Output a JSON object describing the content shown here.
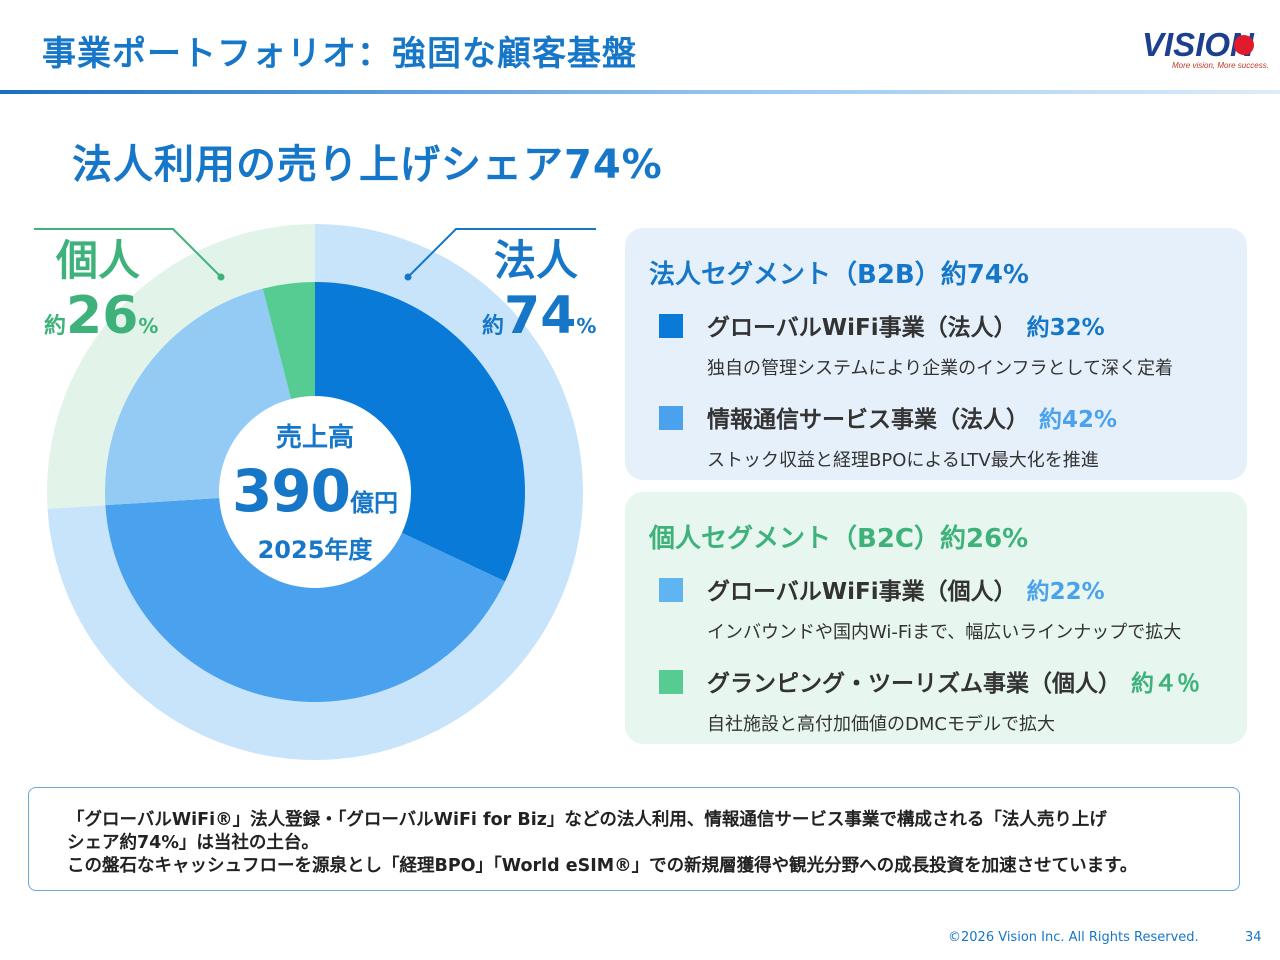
{
  "header": {
    "title": "事業ポートフォリオ：強固な顧客基盤",
    "logo_text": "VISION",
    "logo_tagline": "More vision, More success."
  },
  "headline": "法人利用の売り上げシェア74%",
  "chart_data": {
    "type": "donut",
    "title": "法人利用の売り上げシェア74%",
    "outer_ring": {
      "categories": [
        "法人",
        "個人"
      ],
      "values": [
        74,
        26
      ],
      "colors": [
        "#c8e4fa",
        "#e2f4ea"
      ]
    },
    "inner_ring": {
      "categories": [
        "グローバルWiFi事業（法人）",
        "情報通信サービス事業（法人）",
        "グローバルWiFi事業（個人）",
        "グランピング・ツーリズム事業（個人）"
      ],
      "values": [
        32,
        42,
        22,
        4
      ],
      "colors": [
        "#0a7ad9",
        "#4aa2ee",
        "#93cbf4",
        "#56cc93"
      ]
    },
    "labels": {
      "corp": {
        "name": "法人",
        "approx": "約",
        "value": "74",
        "unit": "%"
      },
      "indiv": {
        "name": "個人",
        "approx": "約",
        "value": "26",
        "unit": "%"
      }
    },
    "center": {
      "label": "売上高",
      "value": "390",
      "unit": "億円",
      "year": "2025年度"
    }
  },
  "segments": [
    {
      "title": "法人セグメント（B2B）約74%",
      "items": [
        {
          "name": "グローバルWiFi事業（法人）",
          "pct": "約32%",
          "desc": "独自の管理システムにより企業のインフラとして深く定着",
          "color": "#0a7ad9",
          "pct_color": "#1677c8"
        },
        {
          "name": "情報通信サービス事業（法人）",
          "pct": "約42%",
          "desc": "ストック収益と経理BPOによるLTV最大化を推進",
          "color": "#4aa2ee",
          "pct_color": "#4aa2ee"
        }
      ]
    },
    {
      "title": "個人セグメント（B2C）約26%",
      "items": [
        {
          "name": "グローバルWiFi事業（個人）",
          "pct": "約22%",
          "desc": "インバウンドや国内Wi-Fiまで、幅広いラインナップで拡大",
          "color": "#61b4f2",
          "pct_color": "#4aa2ee"
        },
        {
          "name": "グランピング・ツーリズム事業（個人）",
          "pct": "約４％",
          "desc": "自社施設と高付加価値のDMCモデルで拡大",
          "color": "#56cc93",
          "pct_color": "#3fb27b"
        }
      ]
    }
  ],
  "note": {
    "line1": "「グローバルWiFi®」法人登録・「グローバルWiFi for Biz」などの法人利用、情報通信サービス事業で構成される「法人売り上げ",
    "line2": "シェア約74%」は当社の土台。",
    "line3": "この盤石なキャッシュフローを源泉とし「経理BPO」「World eSIM®」での新規層獲得や観光分野への成長投資を加速させています。"
  },
  "footer": {
    "copyright": "©2026 Vision Inc. All Rights Reserved.",
    "page": "34"
  }
}
